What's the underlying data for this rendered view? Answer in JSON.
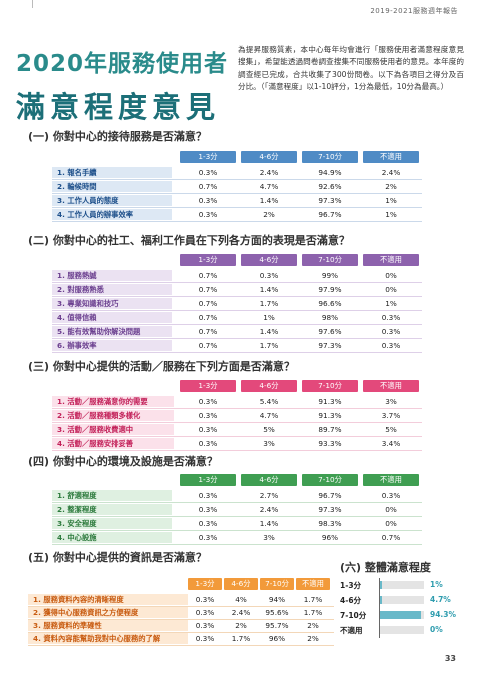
{
  "report_title": "2019-2021服務週年報告",
  "title": {
    "line1": "2020年服務使用者",
    "line2": "滿意程度意見"
  },
  "intro": "為提昇服務質素，本中心每年均會進行「服務使用者滿意程度意見搜集」，希望能透過問卷調查搜集不同服務使用者的意見。本年度的調查經已完成，合共收集了300份問卷。以下為各項目之得分及百分比。（「滿意程度」以1-10評分，1分為最低，10分為最高。）",
  "columns": [
    "1-3分",
    "4-6分",
    "7-10分",
    "不適用"
  ],
  "sections": [
    {
      "heading": "(一) 你對中心的接待服務是否滿意？",
      "rows": [
        {
          "label": "1. 報名手續",
          "values": [
            "0.3%",
            "2.4%",
            "94.9%",
            "2.4%"
          ]
        },
        {
          "label": "2. 輪候時間",
          "values": [
            "0.7%",
            "4.7%",
            "92.6%",
            "2%"
          ]
        },
        {
          "label": "3. 工作人員的態度",
          "values": [
            "0.3%",
            "1.4%",
            "97.3%",
            "1%"
          ]
        },
        {
          "label": "4. 工作人員的辦事效率",
          "values": [
            "0.3%",
            "2%",
            "96.7%",
            "1%"
          ]
        }
      ]
    },
    {
      "heading": "(二) 你對中心的社工、福利工作員在下列各方面的表現是否滿意？",
      "rows": [
        {
          "label": "1. 服務熱誠",
          "values": [
            "0.7%",
            "0.3%",
            "99%",
            "0%"
          ]
        },
        {
          "label": "2. 對服務熟悉",
          "values": [
            "0.7%",
            "1.4%",
            "97.9%",
            "0%"
          ]
        },
        {
          "label": "3. 專業知識和技巧",
          "values": [
            "0.7%",
            "1.7%",
            "96.6%",
            "1%"
          ]
        },
        {
          "label": "4. 值得信賴",
          "values": [
            "0.7%",
            "1%",
            "98%",
            "0.3%"
          ]
        },
        {
          "label": "5. 能有效幫助你解決問題",
          "values": [
            "0.7%",
            "1.4%",
            "97.6%",
            "0.3%"
          ]
        },
        {
          "label": "6. 辦事效率",
          "values": [
            "0.7%",
            "1.7%",
            "97.3%",
            "0.3%"
          ]
        }
      ]
    },
    {
      "heading": "(三) 你對中心提供的活動／服務在下列方面是否滿意？",
      "rows": [
        {
          "label": "1. 活動／服務滿意你的需要",
          "values": [
            "0.3%",
            "5.4%",
            "91.3%",
            "3%"
          ]
        },
        {
          "label": "2. 活動／服務種類多樣化",
          "values": [
            "0.3%",
            "4.7%",
            "91.3%",
            "3.7%"
          ]
        },
        {
          "label": "3. 活動／服務收費適中",
          "values": [
            "0.3%",
            "5%",
            "89.7%",
            "5%"
          ]
        },
        {
          "label": "4. 活動／服務安排妥善",
          "values": [
            "0.3%",
            "3%",
            "93.3%",
            "3.4%"
          ]
        }
      ]
    },
    {
      "heading": "(四) 你對中心的環境及設施是否滿意？",
      "rows": [
        {
          "label": "1. 舒適程度",
          "values": [
            "0.3%",
            "2.7%",
            "96.7%",
            "0.3%"
          ]
        },
        {
          "label": "2. 整潔程度",
          "values": [
            "0.3%",
            "2.4%",
            "97.3%",
            "0%"
          ]
        },
        {
          "label": "3. 安全程度",
          "values": [
            "0.3%",
            "1.4%",
            "98.3%",
            "0%"
          ]
        },
        {
          "label": "4. 中心設施",
          "values": [
            "0.3%",
            "3%",
            "96%",
            "0.7%"
          ]
        }
      ]
    },
    {
      "heading": "(五) 你對中心提供的資訊是否滿意？",
      "rows": [
        {
          "label": "1. 服務資料內容的清晰程度",
          "values": [
            "0.3%",
            "4%",
            "94%",
            "1.7%"
          ]
        },
        {
          "label": "2. 獲得中心服務資訊之方便程度",
          "values": [
            "0.3%",
            "2.4%",
            "95.6%",
            "1.7%"
          ]
        },
        {
          "label": "3. 服務資料的準確性",
          "values": [
            "0.3%",
            "2%",
            "95.7%",
            "2%"
          ]
        },
        {
          "label": "4. 資料內容能幫助我對中心服務的了解",
          "values": [
            "0.3%",
            "1.7%",
            "96%",
            "2%"
          ]
        }
      ]
    }
  ],
  "overall": {
    "heading": "(六) 整體滿意程度",
    "bars": [
      {
        "label": "1-3分",
        "value": "1%",
        "fraction": 0.01
      },
      {
        "label": "4-6分",
        "value": "4.7%",
        "fraction": 0.047
      },
      {
        "label": "7-10分",
        "value": "94.3%",
        "fraction": 0.943
      },
      {
        "label": "不適用",
        "value": "0%",
        "fraction": 0.0
      }
    ]
  },
  "page_number": "33"
}
